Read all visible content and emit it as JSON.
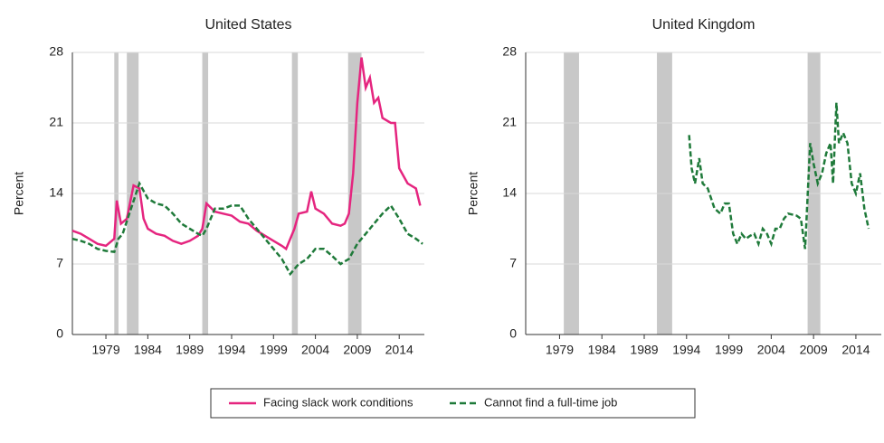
{
  "chart_data": [
    {
      "type": "line",
      "title": "United States",
      "y_label": "Percent",
      "xlim": [
        1975,
        2017
      ],
      "xticks": [
        1979,
        1984,
        1989,
        1994,
        1999,
        2004,
        2009,
        2014
      ],
      "ylim": [
        0,
        28
      ],
      "yticks": [
        0,
        7,
        14,
        21,
        28
      ],
      "grid": true,
      "shading_color": "#c8c8c8",
      "shading": [
        [
          1980.0,
          1980.5
        ],
        [
          1981.5,
          1982.9
        ],
        [
          1990.5,
          1991.2
        ],
        [
          2001.2,
          2001.9
        ],
        [
          2007.9,
          2009.5
        ]
      ],
      "series": [
        {
          "name": "Facing slack work conditions",
          "color": "#e5257f",
          "dash": false,
          "x": [
            1975,
            1976,
            1977,
            1978,
            1979,
            1980,
            1980.3,
            1980.8,
            1981.5,
            1982.3,
            1983,
            1983.5,
            1984,
            1985,
            1986,
            1987,
            1988,
            1989,
            1990,
            1990.5,
            1991,
            1992,
            1993,
            1994,
            1995,
            1996,
            1997,
            1998,
            1999,
            2000,
            2000.5,
            2001.5,
            2002,
            2003,
            2003.5,
            2004,
            2005,
            2006,
            2007,
            2007.5,
            2008,
            2008.5,
            2009,
            2009.5,
            2010,
            2010.5,
            2011,
            2011.5,
            2012,
            2013,
            2013.5,
            2014,
            2015,
            2016,
            2016.5
          ],
          "values": [
            10.3,
            10,
            9.5,
            9,
            8.8,
            9.5,
            13.3,
            11,
            11.5,
            14.8,
            14.5,
            11.5,
            10.5,
            10,
            9.8,
            9.3,
            9,
            9.3,
            9.8,
            10.5,
            13,
            12.2,
            12,
            11.8,
            11.2,
            11,
            10.3,
            9.8,
            9.3,
            8.8,
            8.5,
            10.5,
            12,
            12.2,
            14.2,
            12.5,
            12,
            11,
            10.8,
            11,
            12,
            16,
            23,
            27.5,
            24.5,
            25.5,
            23,
            23.5,
            21.5,
            21,
            21,
            16.5,
            15,
            14.5,
            12.8
          ]
        },
        {
          "name": "Cannot find a full-time job",
          "color": "#1f7a3a",
          "dash": true,
          "x": [
            1975,
            1976,
            1977,
            1978,
            1979,
            1980,
            1980.5,
            1981,
            1982,
            1983,
            1984,
            1985,
            1986,
            1987,
            1988,
            1989,
            1990,
            1990.5,
            1991,
            1992,
            1993,
            1994,
            1995,
            1996,
            1997,
            1998,
            1999,
            2000,
            2001,
            2001.5,
            2002,
            2003,
            2004,
            2005,
            2006,
            2007,
            2008,
            2009,
            2010,
            2011,
            2012,
            2013,
            2014,
            2015,
            2016,
            2016.8
          ],
          "values": [
            9.5,
            9.3,
            9,
            8.5,
            8.3,
            8.2,
            9.5,
            10,
            12.5,
            15,
            13.5,
            13,
            12.8,
            12,
            11,
            10.5,
            10,
            9.8,
            10.5,
            12.5,
            12.5,
            12.8,
            12.8,
            11.5,
            10.5,
            9.5,
            8.5,
            7.5,
            6,
            6.5,
            7,
            7.5,
            8.5,
            8.5,
            7.8,
            7,
            7.5,
            9,
            10,
            11,
            12,
            12.8,
            11.5,
            10,
            9.5,
            9
          ]
        }
      ]
    },
    {
      "type": "line",
      "title": "United Kingdom",
      "y_label": "Percent",
      "xlim": [
        1975,
        2017
      ],
      "xticks": [
        1979,
        1984,
        1989,
        1994,
        1999,
        2004,
        2009,
        2014
      ],
      "ylim": [
        0,
        28
      ],
      "yticks": [
        0,
        7,
        14,
        21,
        28
      ],
      "grid": true,
      "shading_color": "#c8c8c8",
      "shading": [
        [
          1979.5,
          1981.3
        ],
        [
          1990.5,
          1992.3
        ],
        [
          2008.3,
          2009.8
        ]
      ],
      "series": [
        {
          "color": "#1f7a3a",
          "dash": true,
          "x": [
            1994.3,
            1994.6,
            1995,
            1995.5,
            1995.9,
            1996.5,
            1997.3,
            1998,
            1998.5,
            1999,
            1999.5,
            2000,
            2000.5,
            2001,
            2001.5,
            2002,
            2002.5,
            2003,
            2003.5,
            2004,
            2004.5,
            2005,
            2005.5,
            2006,
            2007,
            2007.5,
            2008,
            2008.6,
            2009,
            2009.5,
            2010,
            2010.5,
            2011,
            2011.3,
            2011.7,
            2012,
            2012.5,
            2013,
            2013.5,
            2014,
            2014.5,
            2015,
            2015.5
          ],
          "values": [
            19.8,
            16.5,
            15,
            17.5,
            15,
            14.5,
            12.5,
            12,
            13,
            13,
            10,
            9,
            10,
            9.5,
            9.8,
            10,
            9,
            10.5,
            10,
            9,
            10.5,
            10.5,
            11.5,
            12,
            11.8,
            11.5,
            8.5,
            19,
            17,
            15,
            16,
            18,
            19,
            15,
            23,
            19,
            20,
            19,
            15,
            14,
            16,
            12.5,
            10.5
          ]
        }
      ]
    }
  ]
}
